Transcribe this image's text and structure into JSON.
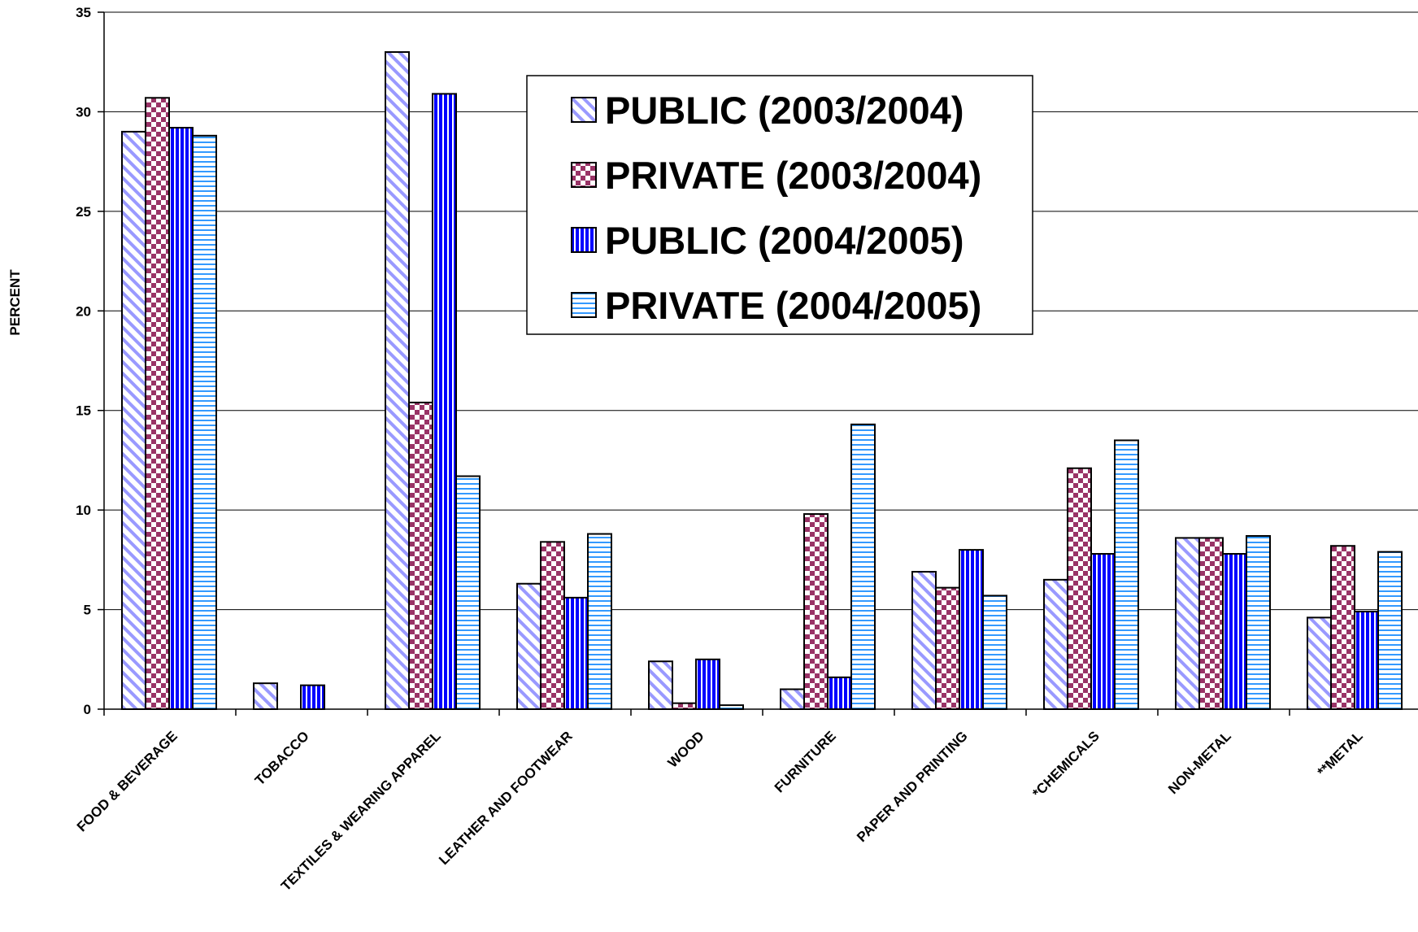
{
  "chart_data": {
    "type": "bar",
    "ylabel": "PERCENT",
    "xlabel": "",
    "ylim": [
      0,
      35
    ],
    "yticks": [
      0,
      5,
      10,
      15,
      20,
      25,
      30,
      35
    ],
    "grid": true,
    "legend_position": "top-center",
    "categories": [
      "FOOD & BEVERAGE",
      "TOBACCO",
      "TEXTILES & WEARING APPAREL",
      "LEATHER AND FOOTWEAR",
      "WOOD",
      "FURNITURE",
      "PAPER AND PRINTING",
      "*CHEMICALS",
      "NON-METAL",
      "**METAL"
    ],
    "series": [
      {
        "name": "PUBLIC (2003/2004)",
        "pattern": "diagonal",
        "color": "#9999ff",
        "values": [
          29.0,
          1.3,
          33.0,
          6.3,
          2.4,
          1.0,
          6.9,
          6.5,
          8.6,
          4.6
        ]
      },
      {
        "name": "PRIVATE (2003/2004)",
        "pattern": "checker",
        "color": "#993366",
        "values": [
          30.7,
          0,
          15.4,
          8.4,
          0.3,
          9.8,
          6.1,
          12.1,
          8.6,
          8.2
        ]
      },
      {
        "name": "PUBLIC (2004/2005)",
        "pattern": "vertical",
        "color": "#0000ff",
        "values": [
          29.2,
          1.2,
          30.9,
          5.6,
          2.5,
          1.6,
          8.0,
          7.8,
          7.8,
          4.9
        ]
      },
      {
        "name": "PRIVATE (2004/2005)",
        "pattern": "horizontal",
        "color": "#3399ff",
        "values": [
          28.8,
          0,
          11.7,
          8.8,
          0.2,
          14.3,
          5.7,
          13.5,
          8.7,
          7.9
        ]
      }
    ]
  }
}
